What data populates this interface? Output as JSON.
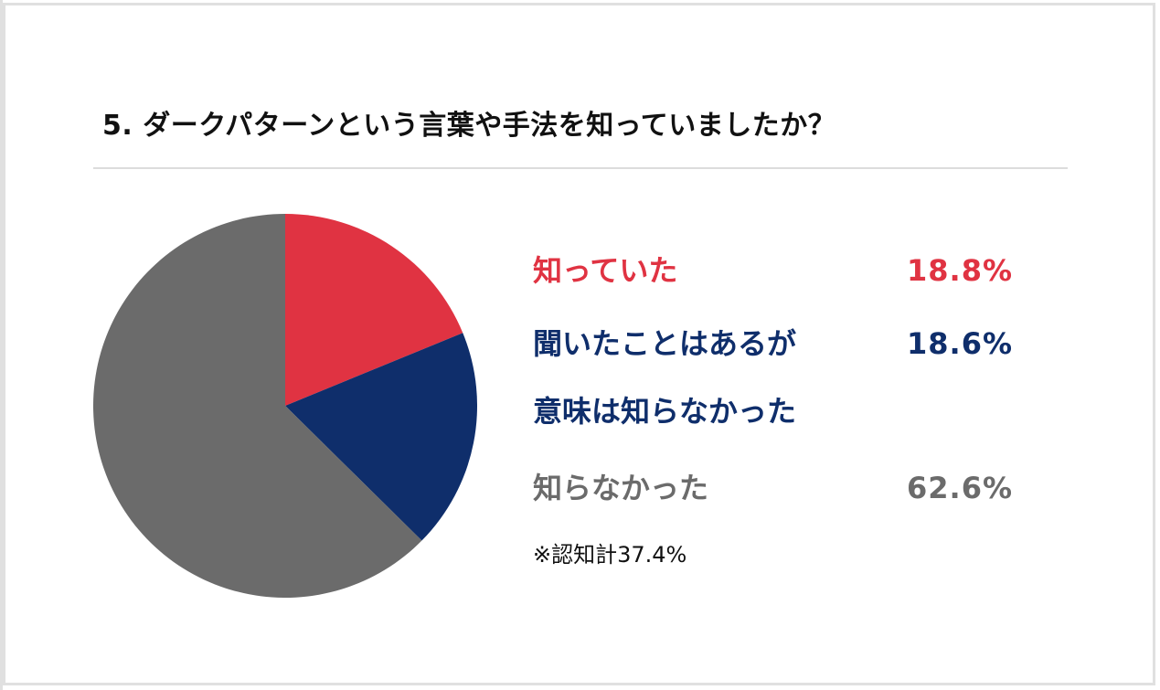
{
  "title": "5. ダークパターンという言葉や手法を知っていましたか？",
  "colors": {
    "knew": "#e03342",
    "heard_only": "#0f2e6b",
    "did_not_know": "#6b6b6b",
    "divider": "#dcdcdc",
    "border": "#e0e0e0"
  },
  "legend": [
    {
      "label_line1": "知っていた",
      "label_line2": "",
      "value": "18.8%",
      "color": "#e03342"
    },
    {
      "label_line1": "聞いたことはあるが",
      "label_line2": "意味は知らなかった",
      "value": "18.6%",
      "color": "#0f2e6b"
    },
    {
      "label_line1": "知らなかった",
      "label_line2": "",
      "value": "62.6%",
      "color": "#6b6b6b"
    }
  ],
  "note": "※認知計37.4%",
  "chart_data": {
    "type": "pie",
    "title": "5. ダークパターンという言葉や手法を知っていましたか？",
    "categories": [
      "知っていた",
      "聞いたことはあるが意味は知らなかった",
      "知らなかった"
    ],
    "values": [
      18.8,
      18.6,
      62.6
    ],
    "unit": "%",
    "colors": [
      "#e03342",
      "#0f2e6b",
      "#6b6b6b"
    ],
    "start_angle": "12 o'clock, clockwise",
    "legend_position": "right",
    "annotations": [
      "※認知計37.4%"
    ]
  }
}
